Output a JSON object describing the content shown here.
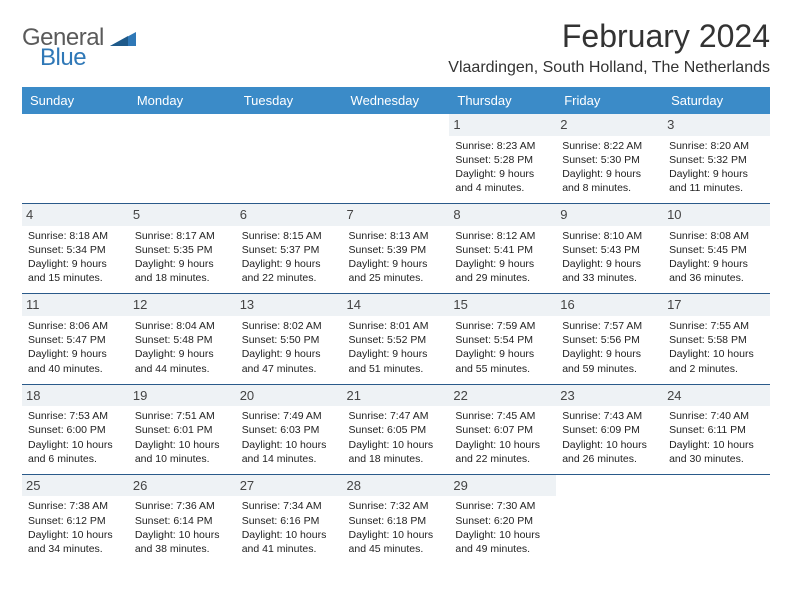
{
  "brand": {
    "general": "General",
    "blue": "Blue",
    "accent": "#2f78b7",
    "text_gray": "#5a5a5a"
  },
  "title": "February 2024",
  "location": "Vlaardingen, South Holland, The Netherlands",
  "theme": {
    "header_bg": "#3b8bc8",
    "border": "#2a5a8a",
    "daynum_bg": "#eef2f5"
  },
  "weekdays": [
    "Sunday",
    "Monday",
    "Tuesday",
    "Wednesday",
    "Thursday",
    "Friday",
    "Saturday"
  ],
  "weeks": [
    [
      null,
      null,
      null,
      null,
      {
        "n": "1",
        "sunrise": "Sunrise: 8:23 AM",
        "sunset": "Sunset: 5:28 PM",
        "day1": "Daylight: 9 hours",
        "day2": "and 4 minutes."
      },
      {
        "n": "2",
        "sunrise": "Sunrise: 8:22 AM",
        "sunset": "Sunset: 5:30 PM",
        "day1": "Daylight: 9 hours",
        "day2": "and 8 minutes."
      },
      {
        "n": "3",
        "sunrise": "Sunrise: 8:20 AM",
        "sunset": "Sunset: 5:32 PM",
        "day1": "Daylight: 9 hours",
        "day2": "and 11 minutes."
      }
    ],
    [
      {
        "n": "4",
        "sunrise": "Sunrise: 8:18 AM",
        "sunset": "Sunset: 5:34 PM",
        "day1": "Daylight: 9 hours",
        "day2": "and 15 minutes."
      },
      {
        "n": "5",
        "sunrise": "Sunrise: 8:17 AM",
        "sunset": "Sunset: 5:35 PM",
        "day1": "Daylight: 9 hours",
        "day2": "and 18 minutes."
      },
      {
        "n": "6",
        "sunrise": "Sunrise: 8:15 AM",
        "sunset": "Sunset: 5:37 PM",
        "day1": "Daylight: 9 hours",
        "day2": "and 22 minutes."
      },
      {
        "n": "7",
        "sunrise": "Sunrise: 8:13 AM",
        "sunset": "Sunset: 5:39 PM",
        "day1": "Daylight: 9 hours",
        "day2": "and 25 minutes."
      },
      {
        "n": "8",
        "sunrise": "Sunrise: 8:12 AM",
        "sunset": "Sunset: 5:41 PM",
        "day1": "Daylight: 9 hours",
        "day2": "and 29 minutes."
      },
      {
        "n": "9",
        "sunrise": "Sunrise: 8:10 AM",
        "sunset": "Sunset: 5:43 PM",
        "day1": "Daylight: 9 hours",
        "day2": "and 33 minutes."
      },
      {
        "n": "10",
        "sunrise": "Sunrise: 8:08 AM",
        "sunset": "Sunset: 5:45 PM",
        "day1": "Daylight: 9 hours",
        "day2": "and 36 minutes."
      }
    ],
    [
      {
        "n": "11",
        "sunrise": "Sunrise: 8:06 AM",
        "sunset": "Sunset: 5:47 PM",
        "day1": "Daylight: 9 hours",
        "day2": "and 40 minutes."
      },
      {
        "n": "12",
        "sunrise": "Sunrise: 8:04 AM",
        "sunset": "Sunset: 5:48 PM",
        "day1": "Daylight: 9 hours",
        "day2": "and 44 minutes."
      },
      {
        "n": "13",
        "sunrise": "Sunrise: 8:02 AM",
        "sunset": "Sunset: 5:50 PM",
        "day1": "Daylight: 9 hours",
        "day2": "and 47 minutes."
      },
      {
        "n": "14",
        "sunrise": "Sunrise: 8:01 AM",
        "sunset": "Sunset: 5:52 PM",
        "day1": "Daylight: 9 hours",
        "day2": "and 51 minutes."
      },
      {
        "n": "15",
        "sunrise": "Sunrise: 7:59 AM",
        "sunset": "Sunset: 5:54 PM",
        "day1": "Daylight: 9 hours",
        "day2": "and 55 minutes."
      },
      {
        "n": "16",
        "sunrise": "Sunrise: 7:57 AM",
        "sunset": "Sunset: 5:56 PM",
        "day1": "Daylight: 9 hours",
        "day2": "and 59 minutes."
      },
      {
        "n": "17",
        "sunrise": "Sunrise: 7:55 AM",
        "sunset": "Sunset: 5:58 PM",
        "day1": "Daylight: 10 hours",
        "day2": "and 2 minutes."
      }
    ],
    [
      {
        "n": "18",
        "sunrise": "Sunrise: 7:53 AM",
        "sunset": "Sunset: 6:00 PM",
        "day1": "Daylight: 10 hours",
        "day2": "and 6 minutes."
      },
      {
        "n": "19",
        "sunrise": "Sunrise: 7:51 AM",
        "sunset": "Sunset: 6:01 PM",
        "day1": "Daylight: 10 hours",
        "day2": "and 10 minutes."
      },
      {
        "n": "20",
        "sunrise": "Sunrise: 7:49 AM",
        "sunset": "Sunset: 6:03 PM",
        "day1": "Daylight: 10 hours",
        "day2": "and 14 minutes."
      },
      {
        "n": "21",
        "sunrise": "Sunrise: 7:47 AM",
        "sunset": "Sunset: 6:05 PM",
        "day1": "Daylight: 10 hours",
        "day2": "and 18 minutes."
      },
      {
        "n": "22",
        "sunrise": "Sunrise: 7:45 AM",
        "sunset": "Sunset: 6:07 PM",
        "day1": "Daylight: 10 hours",
        "day2": "and 22 minutes."
      },
      {
        "n": "23",
        "sunrise": "Sunrise: 7:43 AM",
        "sunset": "Sunset: 6:09 PM",
        "day1": "Daylight: 10 hours",
        "day2": "and 26 minutes."
      },
      {
        "n": "24",
        "sunrise": "Sunrise: 7:40 AM",
        "sunset": "Sunset: 6:11 PM",
        "day1": "Daylight: 10 hours",
        "day2": "and 30 minutes."
      }
    ],
    [
      {
        "n": "25",
        "sunrise": "Sunrise: 7:38 AM",
        "sunset": "Sunset: 6:12 PM",
        "day1": "Daylight: 10 hours",
        "day2": "and 34 minutes."
      },
      {
        "n": "26",
        "sunrise": "Sunrise: 7:36 AM",
        "sunset": "Sunset: 6:14 PM",
        "day1": "Daylight: 10 hours",
        "day2": "and 38 minutes."
      },
      {
        "n": "27",
        "sunrise": "Sunrise: 7:34 AM",
        "sunset": "Sunset: 6:16 PM",
        "day1": "Daylight: 10 hours",
        "day2": "and 41 minutes."
      },
      {
        "n": "28",
        "sunrise": "Sunrise: 7:32 AM",
        "sunset": "Sunset: 6:18 PM",
        "day1": "Daylight: 10 hours",
        "day2": "and 45 minutes."
      },
      {
        "n": "29",
        "sunrise": "Sunrise: 7:30 AM",
        "sunset": "Sunset: 6:20 PM",
        "day1": "Daylight: 10 hours",
        "day2": "and 49 minutes."
      },
      null,
      null
    ]
  ]
}
